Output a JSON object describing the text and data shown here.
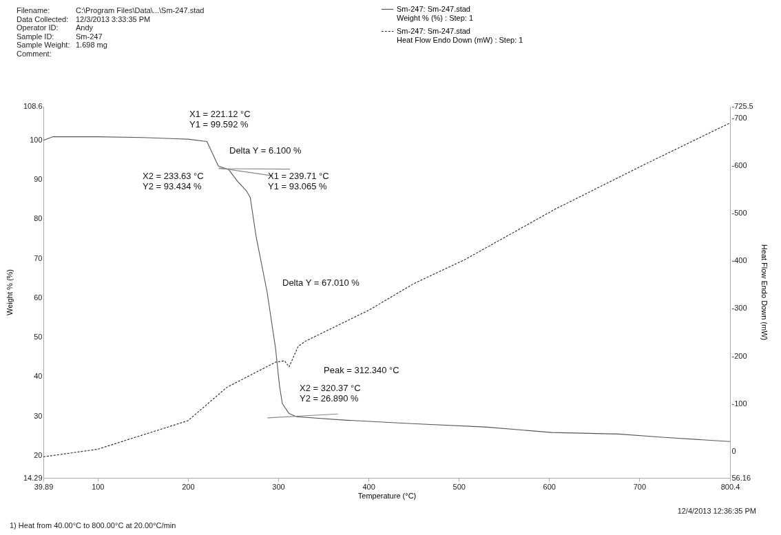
{
  "chart_data": {
    "type": "line",
    "xlabel": "Temperature (°C)",
    "ylabel": "Weight % (%)",
    "y2label": "Heat Flow Endo Down (mW)",
    "xlim": [
      39.89,
      800.4
    ],
    "xticks": [
      39.89,
      100,
      200,
      300,
      400,
      500,
      600,
      700,
      800.4
    ],
    "ylim": [
      14.29,
      108.6
    ],
    "yticks": [
      14.29,
      20,
      30,
      40,
      50,
      60,
      70,
      80,
      90,
      100,
      108.6
    ],
    "y2lim": [
      56.16,
      -725.5
    ],
    "y2ticks": [
      56.16,
      0,
      -100,
      -200,
      -300,
      -400,
      -500,
      -600,
      -700,
      -725.5
    ],
    "legend": "top right",
    "grid": false,
    "series": [
      {
        "name": "Sm-247: Sm-247.stad\nWeight % (%) : Step: 1",
        "color": "#555555",
        "line_style": "solid",
        "x": [
          39.89,
          50,
          100,
          150,
          200,
          221,
          233.6,
          245,
          255,
          265,
          269,
          275.5,
          287.7,
          297,
          301.5,
          304.6,
          312,
          320.37,
          376,
          452,
          529,
          603,
          677,
          725,
          800.4
        ],
        "values": [
          99.9,
          100.8,
          100.8,
          100.6,
          100.2,
          99.6,
          93.4,
          92.5,
          89.5,
          87,
          85.4,
          75.5,
          61.4,
          47.2,
          37.4,
          33.1,
          30.6,
          29.8,
          28.9,
          28.0,
          27.2,
          25.8,
          25.4,
          24.6,
          23.5
        ]
      },
      {
        "name": "Sm-247: Sm-247.stad\nHeat Flow Endo Down (mW) : Step: 1",
        "color": "#222222",
        "line_style": "dashed",
        "axis": "y2",
        "x": [
          39.89,
          100,
          200,
          243,
          297,
          307,
          312,
          322,
          330,
          401,
          450,
          507,
          607,
          705,
          800.4
        ],
        "values": [
          12,
          -4,
          -64,
          -134,
          -187,
          -190,
          -177,
          -220,
          -231,
          -297,
          -352,
          -403,
          -509,
          -602,
          -690
        ]
      },
      {
        "type": "line",
        "color": "#888888",
        "line_style": "solid",
        "x": [
          234,
          313
        ],
        "values": [
          92.7,
          92.6
        ]
      },
      {
        "type": "line",
        "color": "#888888",
        "line_style": "solid",
        "x": [
          234,
          294
        ],
        "values": [
          92.9,
          90.9
        ]
      },
      {
        "type": "line",
        "color": "#888888",
        "line_style": "solid",
        "x": [
          288,
          366
        ],
        "values": [
          29.5,
          30.5
        ]
      }
    ],
    "annotations": [
      "Filename:",
      "C:\\Program Files\\Data\\...\\Sm-247.stad",
      "Data Collected:",
      "12/3/2013 3:33:35 PM",
      "Operator ID:",
      "Andy",
      "Sample ID:",
      "Sm-247",
      "Sample Weight:",
      "1.698 mg",
      "Comment:",
      "12/4/2013 12:36:35 PM",
      "1) Heat from 40.00°C to 800.00°C at 20.00°C/min",
      "X1 = 221.12 °C\nY1 = 99.592 %",
      "Delta Y = 6.100 %",
      "X2 = 233.63 °C\nY2 = 93.434 %",
      "X1 = 239.71 °C\nY1 = 93.065 %",
      "Delta Y = 67.010 %",
      "Peak = 312.340 °C",
      "X2 = 320.37 °C\nY2 = 26.890 %"
    ]
  }
}
